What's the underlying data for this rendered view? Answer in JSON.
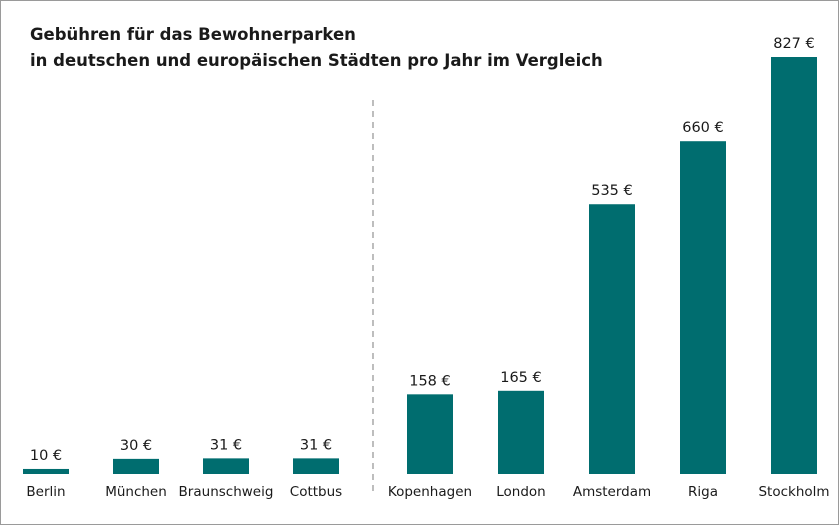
{
  "chart_data": {
    "type": "bar",
    "title": [
      "Gebühren für das Bewohnerparken",
      "in deutschen und europäischen Städten pro Jahr im Vergleich"
    ],
    "categories": [
      "Berlin",
      "München",
      "Braunschweig",
      "Cottbus",
      "Kopenhagen",
      "London",
      "Amsterdam",
      "Riga",
      "Stockholm"
    ],
    "values": [
      10,
      30,
      31,
      31,
      158,
      165,
      535,
      660,
      827
    ],
    "value_labels": [
      "10 €",
      "30 €",
      "31 €",
      "31 €",
      "158 €",
      "165 €",
      "535 €",
      "660 €",
      "827 €"
    ],
    "color": "#006d6f"
  }
}
